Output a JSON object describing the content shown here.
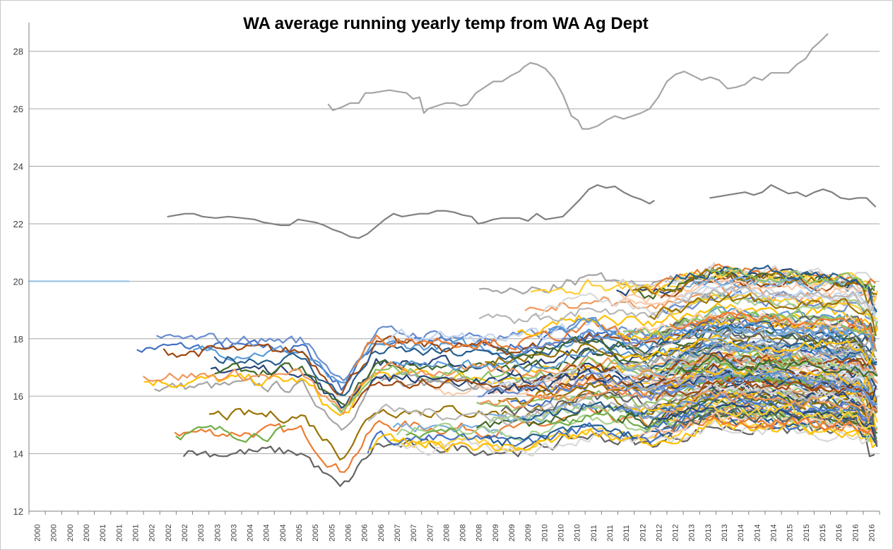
{
  "chart_data": {
    "type": "line",
    "title": "WA average running yearly temp from WA Ag Dept",
    "xlabel": "",
    "ylabel": "",
    "ylim": [
      12,
      29
    ],
    "yticks": [
      12,
      14,
      16,
      18,
      20,
      22,
      24,
      26,
      28
    ],
    "grid": true,
    "legend": "none",
    "x_tick_labels": [
      "2000",
      "2000",
      "2000",
      "2000",
      "2001",
      "2001",
      "2001",
      "2002",
      "2002",
      "2002",
      "2003",
      "2003",
      "2003",
      "2004",
      "2004",
      "2004",
      "2005",
      "2005",
      "2005",
      "2006",
      "2006",
      "2006",
      "2007",
      "2007",
      "2007",
      "2008",
      "2008",
      "2008",
      "2009",
      "2009",
      "2009",
      "2010",
      "2010",
      "2010",
      "2011",
      "2011",
      "2011",
      "2012",
      "2012",
      "2012",
      "2013",
      "2013",
      "2013",
      "2014",
      "2014",
      "2014",
      "2015",
      "2015",
      "2015",
      "2016",
      "2016",
      "2016"
    ],
    "series": [
      {
        "color": "#a5a5a5",
        "values": [
          [
            2005.9,
            26.15
          ],
          [
            2006.0,
            25.95
          ],
          [
            2006.2,
            26.05
          ],
          [
            2006.4,
            26.2
          ],
          [
            2006.6,
            26.2
          ],
          [
            2006.75,
            26.55
          ],
          [
            2006.9,
            26.55
          ],
          [
            2007.1,
            26.6
          ],
          [
            2007.3,
            26.65
          ],
          [
            2007.5,
            26.6
          ],
          [
            2007.7,
            26.55
          ],
          [
            2007.85,
            26.35
          ],
          [
            2008.0,
            26.4
          ],
          [
            2008.1,
            25.85
          ],
          [
            2008.2,
            26.0
          ],
          [
            2008.4,
            26.1
          ],
          [
            2008.6,
            26.2
          ],
          [
            2008.8,
            26.2
          ],
          [
            2008.95,
            26.1
          ],
          [
            2009.1,
            26.15
          ],
          [
            2009.3,
            26.55
          ],
          [
            2009.5,
            26.75
          ],
          [
            2009.7,
            26.95
          ],
          [
            2009.9,
            26.95
          ],
          [
            2010.1,
            27.15
          ],
          [
            2010.3,
            27.3
          ],
          [
            2010.4,
            27.45
          ],
          [
            2010.55,
            27.6
          ],
          [
            2010.7,
            27.55
          ],
          [
            2010.9,
            27.4
          ],
          [
            2011.1,
            27.05
          ],
          [
            2011.3,
            26.5
          ],
          [
            2011.5,
            25.75
          ],
          [
            2011.65,
            25.6
          ],
          [
            2011.75,
            25.3
          ],
          [
            2011.9,
            25.3
          ],
          [
            2012.1,
            25.4
          ],
          [
            2012.3,
            25.6
          ],
          [
            2012.5,
            25.75
          ],
          [
            2012.7,
            25.65
          ],
          [
            2012.9,
            25.75
          ],
          [
            2013.1,
            25.85
          ],
          [
            2013.3,
            26.0
          ],
          [
            2013.5,
            26.4
          ],
          [
            2013.7,
            26.95
          ],
          [
            2013.9,
            27.2
          ],
          [
            2014.1,
            27.3
          ],
          [
            2014.3,
            27.15
          ],
          [
            2014.5,
            27.0
          ],
          [
            2014.7,
            27.1
          ],
          [
            2014.9,
            27.0
          ],
          [
            2015.1,
            26.7
          ],
          [
            2015.3,
            26.75
          ],
          [
            2015.5,
            26.85
          ],
          [
            2015.7,
            27.1
          ],
          [
            2015.9,
            27.0
          ],
          [
            2016.1,
            27.25
          ],
          [
            2016.3,
            27.25
          ],
          [
            2016.5,
            27.25
          ],
          [
            2016.7,
            27.55
          ],
          [
            2016.9,
            27.75
          ],
          [
            2017.05,
            28.1
          ],
          [
            2017.2,
            28.3
          ],
          [
            2017.4,
            28.6
          ]
        ]
      },
      {
        "color": "#7f7f7f",
        "values": [
          [
            2002.2,
            22.25
          ],
          [
            2002.4,
            22.3
          ],
          [
            2002.6,
            22.35
          ],
          [
            2002.8,
            22.35
          ],
          [
            2003.0,
            22.25
          ],
          [
            2003.3,
            22.2
          ],
          [
            2003.6,
            22.25
          ],
          [
            2003.9,
            22.2
          ],
          [
            2004.2,
            22.15
          ],
          [
            2004.4,
            22.05
          ],
          [
            2004.6,
            22.0
          ],
          [
            2004.8,
            21.95
          ],
          [
            2005.0,
            21.95
          ],
          [
            2005.2,
            22.15
          ],
          [
            2005.4,
            22.1
          ],
          [
            2005.6,
            22.05
          ],
          [
            2005.8,
            21.95
          ],
          [
            2006.0,
            21.8
          ],
          [
            2006.2,
            21.7
          ],
          [
            2006.4,
            21.55
          ],
          [
            2006.6,
            21.5
          ],
          [
            2006.8,
            21.65
          ],
          [
            2007.0,
            21.9
          ],
          [
            2007.2,
            22.15
          ],
          [
            2007.4,
            22.35
          ],
          [
            2007.6,
            22.25
          ],
          [
            2007.8,
            22.3
          ],
          [
            2008.0,
            22.35
          ],
          [
            2008.2,
            22.35
          ],
          [
            2008.4,
            22.45
          ],
          [
            2008.6,
            22.45
          ],
          [
            2008.8,
            22.4
          ],
          [
            2009.0,
            22.3
          ],
          [
            2009.2,
            22.25
          ],
          [
            2009.35,
            22.0
          ],
          [
            2009.5,
            22.05
          ],
          [
            2009.7,
            22.15
          ],
          [
            2009.9,
            22.2
          ],
          [
            2010.1,
            22.2
          ],
          [
            2010.3,
            22.2
          ],
          [
            2010.5,
            22.1
          ],
          [
            2010.7,
            22.35
          ],
          [
            2010.9,
            22.15
          ],
          [
            2011.1,
            22.2
          ],
          [
            2011.3,
            22.25
          ],
          [
            2011.5,
            22.55
          ],
          [
            2011.7,
            22.85
          ],
          [
            2011.9,
            23.2
          ],
          [
            2012.1,
            23.35
          ],
          [
            2012.3,
            23.25
          ],
          [
            2012.5,
            23.3
          ],
          [
            2012.7,
            23.1
          ],
          [
            2012.9,
            22.95
          ],
          [
            2013.1,
            22.85
          ],
          [
            2013.3,
            22.7
          ],
          [
            2013.4,
            22.8
          ]
        ]
      },
      {
        "color": "#7f7f7f",
        "values": [
          [
            2014.7,
            22.9
          ],
          [
            2014.9,
            22.95
          ],
          [
            2015.1,
            23.0
          ],
          [
            2015.3,
            23.05
          ],
          [
            2015.5,
            23.1
          ],
          [
            2015.7,
            23.0
          ],
          [
            2015.9,
            23.1
          ],
          [
            2016.1,
            23.35
          ],
          [
            2016.3,
            23.2
          ],
          [
            2016.5,
            23.05
          ],
          [
            2016.7,
            23.1
          ],
          [
            2016.9,
            22.95
          ],
          [
            2017.1,
            23.1
          ],
          [
            2017.3,
            23.2
          ],
          [
            2017.5,
            23.1
          ],
          [
            2017.7,
            22.9
          ],
          [
            2017.9,
            22.85
          ],
          [
            2018.1,
            22.9
          ],
          [
            2018.3,
            22.9
          ],
          [
            2018.5,
            22.6
          ]
        ]
      },
      {
        "color": "#9dc3e6",
        "values": [
          [
            1999.0,
            20.0
          ],
          [
            2000.0,
            20.0
          ],
          [
            2001.0,
            20.0
          ],
          [
            2001.3,
            20.0
          ]
        ]
      }
    ]
  }
}
